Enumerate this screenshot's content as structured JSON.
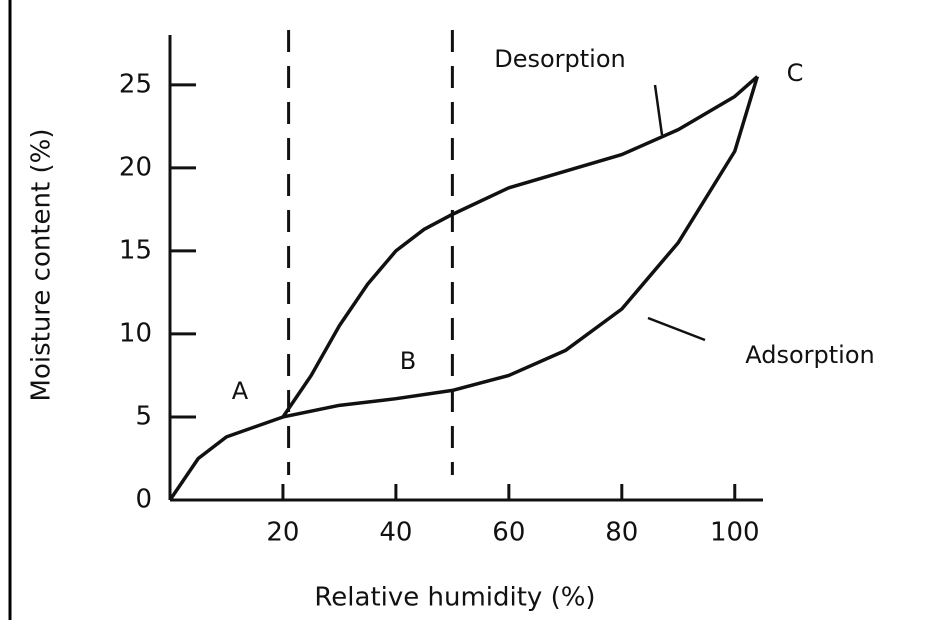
{
  "chart_data": {
    "type": "line",
    "xlabel": "Relative humidity (%)",
    "ylabel": "Moisture content (%)",
    "xlim": [
      0,
      105
    ],
    "ylim": [
      0,
      28
    ],
    "xticks": [
      20,
      40,
      60,
      80,
      100
    ],
    "yticks": [
      0,
      5,
      10,
      15,
      20,
      25
    ],
    "reference_lines": [
      21,
      50
    ],
    "series": [
      {
        "name": "Adsorption",
        "color": "#111111",
        "x": [
          0,
          5,
          10,
          20,
          30,
          40,
          50,
          60,
          70,
          80,
          90,
          100,
          104
        ],
        "values": [
          0,
          2.5,
          3.8,
          5,
          5.7,
          6.1,
          6.6,
          7.5,
          9,
          11.5,
          15.5,
          21,
          25.5
        ]
      },
      {
        "name": "Desorption",
        "color": "#111111",
        "x": [
          20,
          25,
          30,
          35,
          40,
          45,
          50,
          60,
          70,
          80,
          90,
          100,
          104
        ],
        "values": [
          5,
          7.5,
          10.5,
          13,
          15,
          16.3,
          17.2,
          18.8,
          19.8,
          20.8,
          22.3,
          24.3,
          25.5
        ]
      }
    ],
    "annotations": [
      "A",
      "B",
      "C"
    ]
  }
}
